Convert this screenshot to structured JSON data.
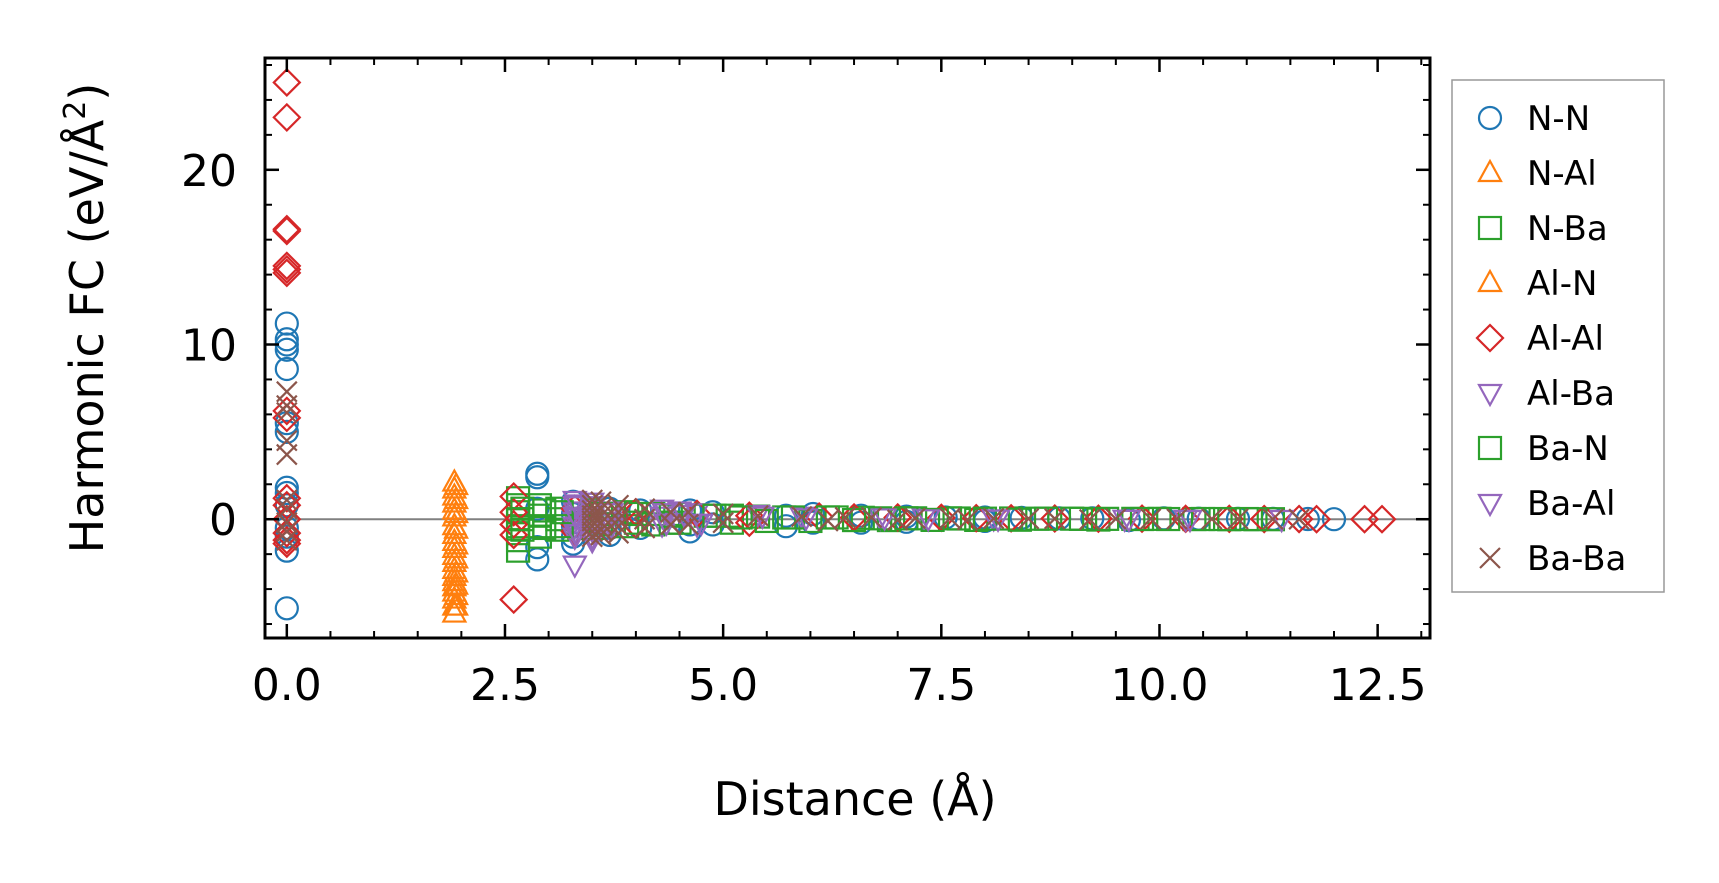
{
  "chart_data": {
    "type": "scatter",
    "xlabel": "Distance (Å)",
    "ylabel_main": "Harmonic FC (eV/Å",
    "ylabel_sup": "2",
    "ylabel_close": ")",
    "xlim": [
      -0.25,
      13.1
    ],
    "ylim": [
      -6.8,
      26.4
    ],
    "xticks": [
      0.0,
      2.5,
      5.0,
      7.5,
      10.0,
      12.5
    ],
    "xtick_labels": [
      "0.0",
      "2.5",
      "5.0",
      "7.5",
      "10.0",
      "12.5"
    ],
    "yticks": [
      0,
      10,
      20
    ],
    "ytick_labels": [
      "0",
      "10",
      "20"
    ],
    "zero_line": 0,
    "legend_position": "outside-right",
    "series": [
      {
        "name": "N-N",
        "marker": "circle",
        "color": "#1f77b4",
        "x": [
          0,
          0,
          0,
          0,
          0,
          0,
          0,
          0,
          0,
          0,
          0,
          0,
          0,
          0,
          2.87,
          2.87,
          2.87,
          2.87,
          2.87,
          3.28,
          3.28,
          3.28,
          3.28,
          3.28,
          3.7,
          3.7,
          3.7,
          4.05,
          4.05,
          4.62,
          4.62,
          4.62,
          4.88,
          4.88,
          5.72,
          5.72,
          6.03,
          6.03,
          6.58,
          6.58,
          7.1,
          7.1,
          7.55,
          8.0,
          8.0,
          8.42,
          8.85,
          9.23,
          9.65,
          10.05,
          10.45,
          10.9,
          11.3,
          11.7,
          12.0
        ],
        "y": [
          11.2,
          10.3,
          10.0,
          9.7,
          8.6,
          5.5,
          5.0,
          1.8,
          1.5,
          0.8,
          -0.5,
          -1.0,
          -1.8,
          -5.1,
          2.6,
          2.4,
          0.6,
          -1.6,
          -2.3,
          1.0,
          0.3,
          -0.4,
          -1.0,
          -1.4,
          0.6,
          -0.5,
          -0.9,
          0.5,
          -0.5,
          0.5,
          -0.3,
          -0.7,
          0.4,
          -0.3,
          -0.4,
          0.2,
          0.3,
          -0.2,
          0.2,
          -0.2,
          0.15,
          -0.15,
          0.1,
          0.1,
          -0.1,
          0.08,
          0.05,
          0.05,
          -0.05,
          0.05,
          0.03,
          0.02,
          0.02,
          0.01,
          0.0
        ]
      },
      {
        "name": "N-Al",
        "marker": "triangle-up",
        "color": "#ff7f0e",
        "x": [
          1.92,
          1.92,
          1.92,
          1.92,
          1.92,
          1.92,
          1.92,
          1.92,
          1.92,
          1.92,
          1.92,
          1.92,
          1.92,
          1.92,
          1.92,
          1.92,
          1.92,
          1.92,
          1.92,
          1.92
        ],
        "y": [
          2.1,
          1.7,
          1.3,
          0.9,
          0.5,
          0.1,
          -0.4,
          -0.9,
          -1.3,
          -1.7,
          -2.1,
          -2.5,
          -2.9,
          -3.3,
          -3.6,
          -3.9,
          -4.2,
          -4.6,
          -5.0,
          -5.4
        ]
      },
      {
        "name": "N-Ba",
        "marker": "square",
        "color": "#2ca02c",
        "x": [
          2.65,
          2.65,
          2.65,
          2.65,
          2.65,
          2.65,
          2.65,
          2.65,
          2.9,
          2.9,
          2.9,
          2.9,
          3.1,
          3.1,
          3.1,
          3.5,
          3.5,
          3.9,
          3.9,
          4.2,
          4.2,
          4.5,
          4.5,
          4.8,
          5.1,
          5.1,
          5.4,
          5.7,
          6.0,
          6.3,
          6.6,
          6.9,
          7.2,
          7.6,
          7.9,
          8.3,
          8.6,
          9.0,
          9.3,
          9.7,
          10.0,
          10.4,
          10.7,
          11.0,
          11.3
        ],
        "y": [
          1.2,
          0.8,
          0.4,
          0.0,
          -0.4,
          -0.8,
          -1.2,
          -1.8,
          0.8,
          0.2,
          -0.4,
          -1.0,
          0.6,
          0.0,
          -0.6,
          0.5,
          -0.5,
          0.4,
          -0.4,
          0.3,
          -0.3,
          0.3,
          -0.2,
          0.2,
          0.2,
          -0.2,
          0.15,
          0.1,
          -0.1,
          0.1,
          0.08,
          -0.05,
          0.05,
          0.05,
          -0.04,
          0.04,
          0.03,
          0.03,
          -0.02,
          0.02,
          0.02,
          0.01,
          0.01,
          0.01,
          0.0
        ]
      },
      {
        "name": "Al-N",
        "marker": "triangle-up",
        "color": "#ff7f0e",
        "x": [
          1.94,
          1.94,
          1.94,
          1.94,
          1.94,
          1.94,
          1.94,
          1.94,
          1.94,
          1.94
        ],
        "y": [
          1.9,
          1.1,
          0.3,
          -0.6,
          -1.5,
          -2.3,
          -3.1,
          -3.8,
          -4.4,
          -5.0
        ]
      },
      {
        "name": "Al-Al",
        "marker": "diamond",
        "color": "#d62728",
        "x": [
          0,
          0,
          0,
          0,
          0,
          0,
          0,
          0,
          0,
          0,
          0,
          0,
          0,
          0,
          0,
          2.6,
          2.6,
          2.6,
          2.6,
          2.6,
          3.3,
          3.3,
          3.3,
          4.0,
          4.0,
          4.7,
          5.3,
          5.3,
          6.1,
          6.5,
          7.0,
          7.5,
          7.9,
          8.3,
          8.8,
          9.3,
          9.8,
          10.3,
          10.8,
          11.2,
          11.6,
          11.8,
          12.35,
          12.55
        ],
        "y": [
          25.0,
          23.0,
          16.6,
          16.5,
          14.5,
          14.3,
          14.1,
          6.2,
          5.8,
          1.2,
          0.8,
          0.0,
          -0.8,
          -1.2,
          -1.4,
          1.3,
          0.4,
          -0.3,
          -0.9,
          -4.6,
          0.6,
          -0.3,
          -0.7,
          0.4,
          -0.3,
          0.3,
          0.2,
          -0.2,
          0.15,
          0.1,
          0.1,
          0.08,
          0.06,
          0.05,
          0.04,
          0.03,
          0.03,
          0.02,
          0.02,
          0.01,
          0.01,
          0.0,
          0.0,
          0.0
        ]
      },
      {
        "name": "Al-Ba",
        "marker": "triangle-down",
        "color": "#9467bd",
        "x": [
          3.3,
          3.3,
          3.3,
          3.3,
          3.3,
          3.3,
          3.3,
          3.3,
          3.3,
          3.5,
          3.5,
          3.5,
          3.5,
          3.5,
          3.5,
          3.5,
          3.7,
          3.7,
          3.7,
          4.3,
          4.3,
          4.3,
          4.5,
          4.5,
          4.7,
          4.7,
          5.4,
          5.9,
          6.8,
          7.3,
          8.1,
          9.6,
          10.3,
          11.4
        ],
        "y": [
          1.1,
          0.8,
          0.5,
          0.2,
          -0.1,
          -0.4,
          -0.7,
          -1.0,
          -2.6,
          1.0,
          0.6,
          0.2,
          -0.2,
          -0.6,
          -1.0,
          -1.2,
          0.5,
          -0.1,
          -0.5,
          0.6,
          0.2,
          -0.3,
          0.5,
          -0.2,
          0.4,
          -0.3,
          0.3,
          0.2,
          0.1,
          0.1,
          0.05,
          0.03,
          0.02,
          0.01
        ]
      },
      {
        "name": "Ba-N",
        "marker": "square",
        "color": "#2ca02c",
        "x": [
          2.7,
          2.7,
          2.7,
          2.95,
          2.95,
          3.15,
          3.15,
          3.6,
          3.6,
          4.0,
          4.0,
          4.4,
          4.4,
          4.9,
          5.2,
          5.5,
          5.8,
          6.2,
          6.5,
          6.8,
          7.1,
          7.4,
          7.7,
          8.0,
          8.4,
          8.7,
          9.1,
          9.4,
          9.8,
          10.1,
          10.5,
          10.8,
          11.1
        ],
        "y": [
          0.6,
          0.0,
          -0.6,
          0.5,
          -0.5,
          0.4,
          -0.4,
          0.3,
          -0.3,
          0.3,
          -0.2,
          0.2,
          -0.2,
          0.2,
          0.1,
          -0.1,
          0.1,
          0.1,
          -0.05,
          0.05,
          0.05,
          -0.04,
          0.04,
          0.03,
          -0.03,
          0.03,
          0.02,
          0.02,
          0.01,
          0.01,
          0.01,
          0.0,
          0.0
        ]
      },
      {
        "name": "Ba-Al",
        "marker": "triangle-down",
        "color": "#9467bd",
        "x": [
          3.32,
          3.32,
          3.32,
          3.52,
          3.52,
          3.52,
          3.72,
          3.72,
          4.35,
          4.35,
          4.55,
          4.75,
          5.45,
          5.95,
          6.85,
          7.35,
          8.15,
          9.65,
          10.35
        ],
        "y": [
          0.9,
          0.1,
          -0.8,
          0.8,
          0.0,
          -0.8,
          0.4,
          -0.4,
          0.4,
          -0.2,
          0.3,
          -0.2,
          0.2,
          0.1,
          0.1,
          0.05,
          0.03,
          0.02,
          0.01
        ]
      },
      {
        "name": "Ba-Ba",
        "marker": "x",
        "color": "#8c564b",
        "x": [
          0,
          0,
          0,
          0,
          0,
          0,
          0,
          0,
          0,
          0,
          3.5,
          3.5,
          3.5,
          3.5,
          3.5,
          3.5,
          3.5,
          3.5,
          3.6,
          3.6,
          3.6,
          3.6,
          3.6,
          3.6,
          3.8,
          3.8,
          3.8,
          3.8,
          3.8,
          4.1,
          4.1,
          4.1,
          4.4,
          4.4,
          4.6,
          4.6,
          5.0,
          5.0,
          5.4,
          5.9,
          6.2,
          6.4,
          6.7,
          7.0,
          7.2,
          7.6,
          7.8,
          8.1,
          8.5,
          8.8,
          9.2,
          9.5,
          9.9,
          10.2,
          10.6,
          10.9,
          11.3,
          11.6
        ],
        "y": [
          7.3,
          6.5,
          6.1,
          4.5,
          3.7,
          1.1,
          0.6,
          -0.2,
          -0.7,
          -1.2,
          1.1,
          0.8,
          0.5,
          0.2,
          -0.1,
          -0.4,
          -0.7,
          -1.0,
          1.0,
          0.6,
          0.2,
          -0.2,
          -0.6,
          -0.9,
          0.8,
          0.4,
          0.0,
          -0.4,
          -0.8,
          0.6,
          0.0,
          -0.5,
          0.4,
          -0.3,
          0.4,
          -0.3,
          0.3,
          -0.2,
          0.2,
          0.15,
          -0.1,
          0.1,
          0.1,
          -0.05,
          0.05,
          0.05,
          -0.04,
          0.04,
          0.03,
          0.03,
          -0.02,
          0.02,
          0.02,
          0.01,
          0.01,
          0.01,
          0.0,
          0.0
        ]
      }
    ]
  }
}
